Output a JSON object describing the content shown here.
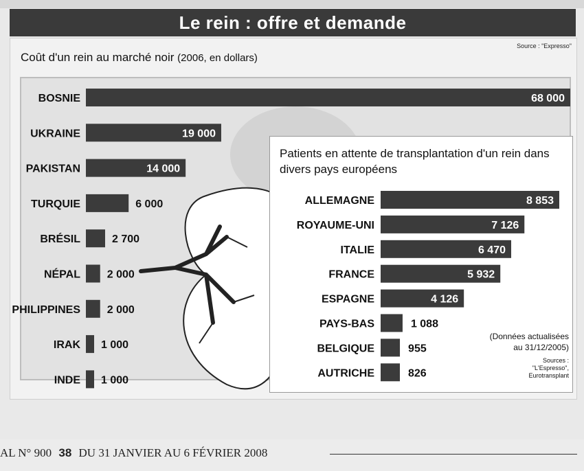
{
  "header": {
    "title": "Le rein : offre et demande"
  },
  "source_top": "Source : \"Expresso\"",
  "subtitle": {
    "main": "Coût d'un rein au marché noir",
    "unit": "(2006, en dollars)"
  },
  "chart_data": [
    {
      "type": "bar",
      "orientation": "horizontal",
      "title": "Coût d'un rein au marché noir (2006, en dollars)",
      "categories": [
        "BOSNIE",
        "UKRAINE",
        "PAKISTAN",
        "TURQUIE",
        "BRÉSIL",
        "NÉPAL",
        "PHILIPPINES",
        "IRAK",
        "INDE"
      ],
      "values": [
        68000,
        19000,
        14000,
        6000,
        2700,
        2000,
        2000,
        1000,
        1000
      ],
      "labels": [
        "68 000",
        "19 000",
        "14 000",
        "6 000",
        "2 700",
        "2 000",
        "2 000",
        "1 000",
        "1 000"
      ],
      "xlim": [
        0,
        68000
      ],
      "grid": false,
      "bar_color": "#3b3b3b"
    },
    {
      "type": "bar",
      "orientation": "horizontal",
      "title": "Patients en attente de transplantation d'un rein dans divers pays européens",
      "categories": [
        "ALLEMAGNE",
        "ROYAUME-UNI",
        "ITALIE",
        "FRANCE",
        "ESPAGNE",
        "PAYS-BAS",
        "BELGIQUE",
        "AUTRICHE"
      ],
      "values": [
        8853,
        7126,
        6470,
        5932,
        4126,
        1088,
        955,
        826
      ],
      "labels": [
        "8 853",
        "7 126",
        "6 470",
        "5 932",
        "4 126",
        "1 088",
        "955",
        "826"
      ],
      "xlim": [
        0,
        8853
      ],
      "grid": false,
      "bar_color": "#3b3b3b"
    }
  ],
  "inset": {
    "title": "Patients en attente de transplantation d'un rein dans divers pays européens",
    "note_line1": "(Données actualisées",
    "note_line2": "au 31/12/2005)",
    "sources_line1": "Sources :",
    "sources_line2": "\"L'Espresso\",",
    "sources_line3": "Eurotransplant"
  },
  "footer": {
    "left": "AL N° 900",
    "page": "38",
    "date": "DU 31 JANVIER AU 6 FÉVRIER 2008"
  },
  "colors": {
    "bar": "#3b3b3b",
    "banner": "#3a3a3a",
    "label_light": "#ffffff",
    "label_dark": "#111111"
  }
}
